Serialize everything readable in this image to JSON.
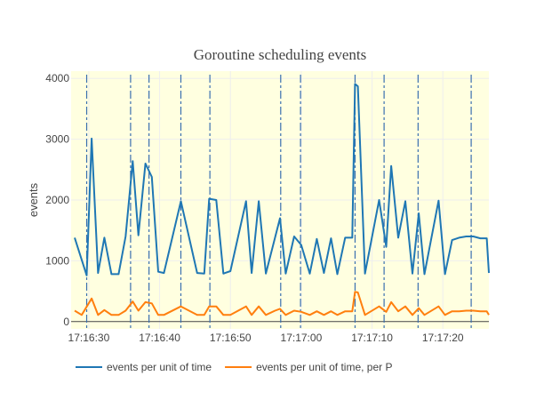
{
  "chart_data": {
    "type": "line",
    "title": "Goroutine scheduling events",
    "xlabel": "",
    "ylabel": "events",
    "x_tick_labels": [
      "17:16:30",
      "17:16:40",
      "17:16:50",
      "17:17:00",
      "17:17:10",
      "17:17:20"
    ],
    "x_tick_seconds": [
      30,
      40,
      50,
      60,
      70,
      80
    ],
    "xlim_seconds": [
      27.5,
      86.5
    ],
    "y_tick_labels": [
      "0",
      "1000",
      "2000",
      "3000",
      "4000"
    ],
    "y_ticks": [
      0,
      1000,
      2000,
      3000,
      4000
    ],
    "ylim": [
      -120,
      4120
    ],
    "grid": true,
    "legend_position": "bottom-left",
    "event_markers_seconds": [
      29.7,
      35.9,
      38.5,
      43.0,
      47.1,
      57.1,
      59.9,
      67.6,
      71.7,
      76.5,
      84.0
    ],
    "colors": {
      "background": "#ffffe0",
      "grid": "#eeeeee",
      "marker_line": "#3a6fb0",
      "series_1": "#1f77b4",
      "series_2": "#ff7f0e"
    },
    "series": [
      {
        "name": "events per unit of time",
        "color": "#1f77b4",
        "points": [
          [
            28.0,
            1380
          ],
          [
            29.7,
            760
          ],
          [
            30.4,
            3010
          ],
          [
            31.3,
            800
          ],
          [
            32.2,
            1380
          ],
          [
            33.2,
            780
          ],
          [
            34.2,
            780
          ],
          [
            35.2,
            1400
          ],
          [
            36.2,
            2640
          ],
          [
            37.0,
            1420
          ],
          [
            38.0,
            2600
          ],
          [
            38.9,
            2380
          ],
          [
            39.8,
            820
          ],
          [
            40.6,
            800
          ],
          [
            43.0,
            1980
          ],
          [
            45.3,
            800
          ],
          [
            46.3,
            790
          ],
          [
            47.0,
            2020
          ],
          [
            48.0,
            2000
          ],
          [
            49.0,
            790
          ],
          [
            50.0,
            830
          ],
          [
            52.2,
            1980
          ],
          [
            53.0,
            800
          ],
          [
            54.0,
            1980
          ],
          [
            55.0,
            790
          ],
          [
            56.3,
            1380
          ],
          [
            57.0,
            1700
          ],
          [
            57.8,
            790
          ],
          [
            59.0,
            1400
          ],
          [
            60.0,
            1260
          ],
          [
            61.2,
            790
          ],
          [
            62.2,
            1360
          ],
          [
            63.2,
            800
          ],
          [
            64.2,
            1370
          ],
          [
            65.1,
            780
          ],
          [
            66.2,
            1380
          ],
          [
            67.2,
            1380
          ],
          [
            67.6,
            3910
          ],
          [
            68.0,
            3870
          ],
          [
            69.0,
            790
          ],
          [
            71.0,
            2000
          ],
          [
            72.0,
            1230
          ],
          [
            72.7,
            2560
          ],
          [
            73.7,
            1380
          ],
          [
            74.7,
            1980
          ],
          [
            75.7,
            790
          ],
          [
            76.6,
            1780
          ],
          [
            77.4,
            780
          ],
          [
            79.4,
            1990
          ],
          [
            80.3,
            780
          ],
          [
            81.3,
            1340
          ],
          [
            82.3,
            1380
          ],
          [
            83.3,
            1400
          ],
          [
            84.3,
            1400
          ],
          [
            85.3,
            1370
          ],
          [
            86.2,
            1370
          ],
          [
            86.5,
            800
          ]
        ]
      },
      {
        "name": "events per unit of time, per P",
        "color": "#ff7f0e",
        "points": [
          [
            28.0,
            180
          ],
          [
            29.0,
            110
          ],
          [
            30.4,
            380
          ],
          [
            31.3,
            110
          ],
          [
            32.2,
            190
          ],
          [
            33.2,
            110
          ],
          [
            34.2,
            110
          ],
          [
            35.2,
            180
          ],
          [
            36.2,
            330
          ],
          [
            37.0,
            180
          ],
          [
            38.0,
            320
          ],
          [
            38.9,
            300
          ],
          [
            39.8,
            110
          ],
          [
            40.6,
            110
          ],
          [
            43.0,
            250
          ],
          [
            45.3,
            110
          ],
          [
            46.3,
            110
          ],
          [
            47.0,
            250
          ],
          [
            48.0,
            250
          ],
          [
            49.0,
            110
          ],
          [
            50.0,
            110
          ],
          [
            52.2,
            250
          ],
          [
            53.0,
            110
          ],
          [
            54.0,
            250
          ],
          [
            55.0,
            110
          ],
          [
            56.3,
            180
          ],
          [
            57.0,
            210
          ],
          [
            57.8,
            110
          ],
          [
            59.0,
            180
          ],
          [
            60.0,
            160
          ],
          [
            61.2,
            110
          ],
          [
            62.2,
            170
          ],
          [
            63.2,
            110
          ],
          [
            64.2,
            170
          ],
          [
            65.1,
            110
          ],
          [
            66.2,
            170
          ],
          [
            67.2,
            170
          ],
          [
            67.6,
            490
          ],
          [
            68.0,
            480
          ],
          [
            69.0,
            110
          ],
          [
            71.0,
            250
          ],
          [
            72.0,
            160
          ],
          [
            72.7,
            320
          ],
          [
            73.7,
            170
          ],
          [
            74.7,
            250
          ],
          [
            75.7,
            110
          ],
          [
            76.6,
            220
          ],
          [
            77.4,
            110
          ],
          [
            79.4,
            250
          ],
          [
            80.3,
            110
          ],
          [
            81.3,
            170
          ],
          [
            82.3,
            170
          ],
          [
            83.3,
            180
          ],
          [
            84.3,
            180
          ],
          [
            85.3,
            170
          ],
          [
            86.2,
            170
          ],
          [
            86.5,
            110
          ]
        ]
      }
    ]
  }
}
